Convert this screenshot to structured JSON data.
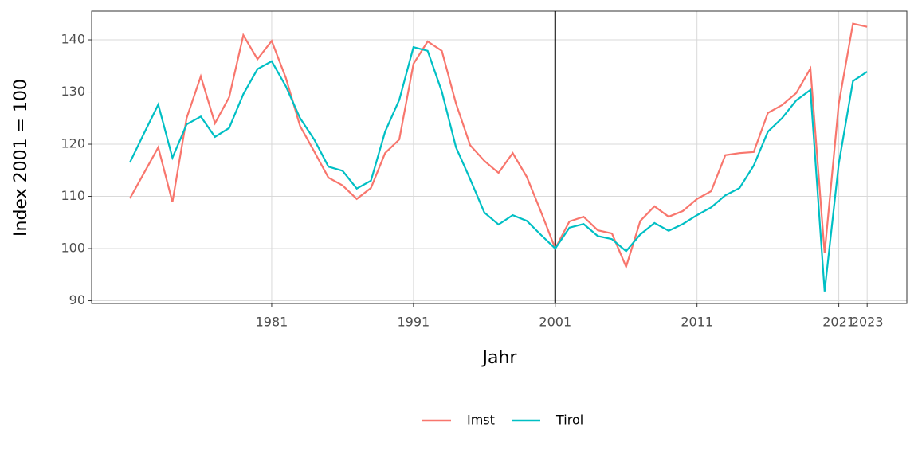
{
  "chart_data": {
    "type": "line",
    "x": [
      1971,
      1972,
      1973,
      1974,
      1975,
      1976,
      1977,
      1978,
      1979,
      1980,
      1981,
      1982,
      1983,
      1984,
      1985,
      1986,
      1987,
      1988,
      1989,
      1990,
      1991,
      1992,
      1993,
      1994,
      1995,
      1996,
      1997,
      1998,
      1999,
      2000,
      2001,
      2002,
      2003,
      2004,
      2005,
      2006,
      2007,
      2008,
      2009,
      2010,
      2011,
      2012,
      2013,
      2014,
      2015,
      2016,
      2017,
      2018,
      2019,
      2020,
      2021,
      2022,
      2023
    ],
    "series": [
      {
        "name": "Imst",
        "color": "#F8766D",
        "values": [
          109.6,
          114.5,
          119.4,
          108.9,
          125.0,
          133.0,
          124.0,
          129.0,
          140.9,
          136.3,
          139.8,
          132.7,
          123.5,
          118.6,
          113.6,
          112.1,
          109.5,
          111.6,
          118.3,
          120.9,
          135.4,
          139.7,
          137.9,
          127.8,
          119.8,
          116.8,
          114.5,
          118.3,
          113.7,
          107.0,
          100,
          105.2,
          106.1,
          103.5,
          102.9,
          96.5,
          105.3,
          108.1,
          106.1,
          107.2,
          109.5,
          111.0,
          117.9,
          118.3,
          118.5,
          126.0,
          127.5,
          129.8,
          134.5,
          99.1,
          127.8,
          143.1,
          142.5
        ]
      },
      {
        "name": "Tirol",
        "color": "#00BFC4",
        "values": [
          116.5,
          122.1,
          127.6,
          117.4,
          123.8,
          125.3,
          121.4,
          123.1,
          129.6,
          134.4,
          135.9,
          131.1,
          125.0,
          120.9,
          115.7,
          114.9,
          111.5,
          113.0,
          122.4,
          128.5,
          138.6,
          137.9,
          130.1,
          119.4,
          113.3,
          106.9,
          104.6,
          106.4,
          105.3,
          102.6,
          100,
          104.0,
          104.7,
          102.4,
          101.8,
          99.5,
          102.7,
          104.9,
          103.4,
          104.7,
          106.4,
          107.9,
          110.2,
          111.6,
          115.9,
          122.4,
          125.0,
          128.4,
          130.4,
          91.8,
          116.3,
          132.1,
          133.9
        ]
      }
    ],
    "xlabel": "Jahr",
    "ylabel": "Index 2001 = 100",
    "xlim": [
      1968.3,
      2025.8
    ],
    "xticks": [
      1981,
      1991,
      2001,
      2011,
      2021,
      2023
    ],
    "ylim": [
      89.47,
      145.5
    ],
    "yticks": [
      90,
      100,
      110,
      120,
      130,
      140
    ],
    "vline": 2001,
    "grid": true,
    "legend": "bottom"
  }
}
